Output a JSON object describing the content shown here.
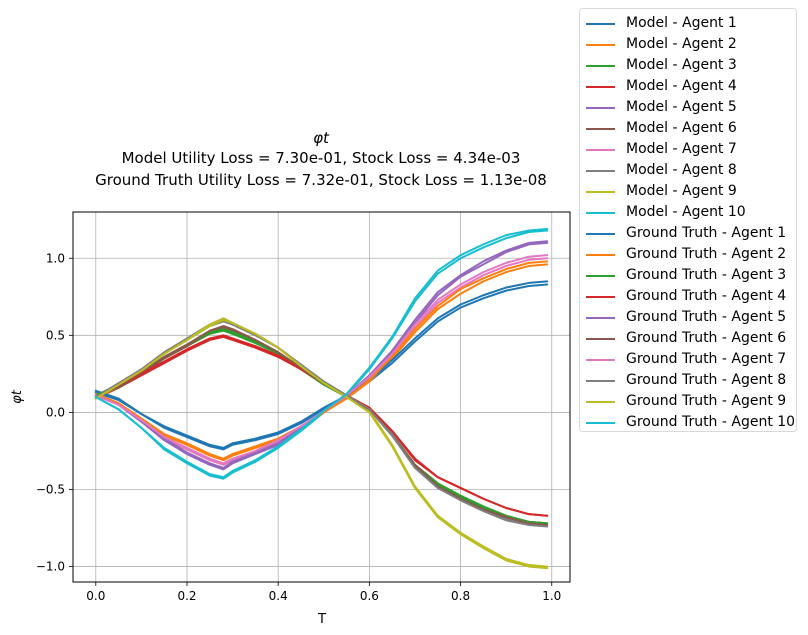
{
  "chart_data": {
    "type": "line",
    "title": "φt",
    "subtitle_lines": [
      "Model Utility Loss = 7.30e-01, Stock Loss = 4.34e-03",
      "Ground Truth Utility Loss = 7.32e-01, Stock Loss = 1.13e-08"
    ],
    "xlabel": "T",
    "ylabel": "φt",
    "xlim": [
      -0.05,
      1.04
    ],
    "ylim": [
      -1.1,
      1.3
    ],
    "xticks": [
      0.0,
      0.2,
      0.4,
      0.6,
      0.8,
      1.0
    ],
    "xtick_labels": [
      "0.0",
      "0.2",
      "0.4",
      "0.6",
      "0.8",
      "1.0"
    ],
    "yticks": [
      -1.0,
      -0.5,
      0.0,
      0.5,
      1.0
    ],
    "ytick_labels": [
      "−1.0",
      "−0.5",
      "0.0",
      "0.5",
      "1.0"
    ],
    "grid": true,
    "legend_position": "outside-right",
    "x": [
      0.0,
      0.05,
      0.1,
      0.15,
      0.2,
      0.25,
      0.28,
      0.3,
      0.35,
      0.4,
      0.45,
      0.5,
      0.55,
      0.6,
      0.65,
      0.7,
      0.75,
      0.8,
      0.85,
      0.9,
      0.95,
      0.99
    ],
    "series": [
      {
        "name": "Model - Agent 1",
        "color": "#1f77b4",
        "values": [
          0.13,
          0.08,
          -0.01,
          -0.1,
          -0.16,
          -0.22,
          -0.24,
          -0.21,
          -0.18,
          -0.14,
          -0.07,
          0.02,
          0.1,
          0.2,
          0.32,
          0.46,
          0.59,
          0.68,
          0.74,
          0.79,
          0.82,
          0.83
        ]
      },
      {
        "name": "Model - Agent 2",
        "color": "#ff7f0e",
        "values": [
          0.12,
          0.06,
          -0.04,
          -0.15,
          -0.21,
          -0.28,
          -0.31,
          -0.28,
          -0.23,
          -0.18,
          -0.1,
          0.0,
          0.09,
          0.2,
          0.35,
          0.52,
          0.67,
          0.77,
          0.85,
          0.91,
          0.95,
          0.96
        ]
      },
      {
        "name": "Model - Agent 3",
        "color": "#2ca02c",
        "values": [
          0.1,
          0.17,
          0.25,
          0.35,
          0.43,
          0.51,
          0.53,
          0.51,
          0.45,
          0.38,
          0.28,
          0.19,
          0.11,
          0.03,
          -0.14,
          -0.34,
          -0.46,
          -0.54,
          -0.61,
          -0.67,
          -0.71,
          -0.72
        ]
      },
      {
        "name": "Model - Agent 4",
        "color": "#d62728",
        "values": [
          0.09,
          0.16,
          0.24,
          0.32,
          0.4,
          0.47,
          0.49,
          0.47,
          0.42,
          0.36,
          0.28,
          0.19,
          0.11,
          0.03,
          -0.12,
          -0.31,
          -0.42,
          -0.49,
          -0.56,
          -0.62,
          -0.66,
          -0.67
        ]
      },
      {
        "name": "Model - Agent 5",
        "color": "#9467bd",
        "values": [
          0.11,
          0.05,
          -0.06,
          -0.18,
          -0.27,
          -0.34,
          -0.37,
          -0.33,
          -0.27,
          -0.21,
          -0.11,
          0.0,
          0.1,
          0.23,
          0.39,
          0.58,
          0.76,
          0.88,
          0.96,
          1.04,
          1.09,
          1.1
        ]
      },
      {
        "name": "Model - Agent 6",
        "color": "#8c564b",
        "values": [
          0.1,
          0.16,
          0.25,
          0.35,
          0.43,
          0.52,
          0.55,
          0.53,
          0.47,
          0.39,
          0.29,
          0.19,
          0.11,
          0.03,
          -0.14,
          -0.34,
          -0.47,
          -0.55,
          -0.62,
          -0.68,
          -0.71,
          -0.72
        ]
      },
      {
        "name": "Model - Agent 7",
        "color": "#e377c2",
        "values": [
          0.11,
          0.05,
          -0.05,
          -0.17,
          -0.24,
          -0.31,
          -0.34,
          -0.31,
          -0.26,
          -0.19,
          -0.1,
          0.0,
          0.1,
          0.22,
          0.37,
          0.55,
          0.71,
          0.81,
          0.89,
          0.95,
          0.99,
          1.0
        ]
      },
      {
        "name": "Model - Agent 8",
        "color": "#7f7f7f",
        "values": [
          0.09,
          0.18,
          0.27,
          0.38,
          0.47,
          0.56,
          0.59,
          0.57,
          0.5,
          0.42,
          0.31,
          0.2,
          0.11,
          0.03,
          -0.14,
          -0.35,
          -0.48,
          -0.56,
          -0.63,
          -0.69,
          -0.72,
          -0.73
        ]
      },
      {
        "name": "Model - Agent 9",
        "color": "#bcbd22",
        "values": [
          0.09,
          0.17,
          0.27,
          0.38,
          0.47,
          0.56,
          0.6,
          0.58,
          0.51,
          0.42,
          0.3,
          0.19,
          0.11,
          0.01,
          -0.21,
          -0.48,
          -0.67,
          -0.78,
          -0.87,
          -0.95,
          -0.99,
          -1.0
        ]
      },
      {
        "name": "Model - Agent 10",
        "color": "#17becf",
        "values": [
          0.1,
          0.02,
          -0.1,
          -0.24,
          -0.33,
          -0.41,
          -0.43,
          -0.39,
          -0.32,
          -0.23,
          -0.12,
          0.0,
          0.11,
          0.28,
          0.48,
          0.72,
          0.9,
          1.0,
          1.07,
          1.13,
          1.17,
          1.18
        ]
      },
      {
        "name": "Ground Truth - Agent 1",
        "color": "#1f77b4",
        "values": [
          0.14,
          0.09,
          -0.01,
          -0.09,
          -0.15,
          -0.21,
          -0.23,
          -0.2,
          -0.17,
          -0.13,
          -0.06,
          0.03,
          0.11,
          0.21,
          0.34,
          0.48,
          0.61,
          0.7,
          0.76,
          0.81,
          0.84,
          0.85
        ]
      },
      {
        "name": "Ground Truth - Agent 2",
        "color": "#ff7f0e",
        "values": [
          0.12,
          0.06,
          -0.04,
          -0.14,
          -0.2,
          -0.27,
          -0.3,
          -0.27,
          -0.22,
          -0.17,
          -0.09,
          0.0,
          0.09,
          0.21,
          0.36,
          0.54,
          0.69,
          0.8,
          0.87,
          0.93,
          0.97,
          0.98
        ]
      },
      {
        "name": "Ground Truth - Agent 3",
        "color": "#2ca02c",
        "values": [
          0.11,
          0.18,
          0.26,
          0.36,
          0.44,
          0.52,
          0.54,
          0.52,
          0.46,
          0.38,
          0.28,
          0.18,
          0.1,
          0.02,
          -0.15,
          -0.35,
          -0.47,
          -0.55,
          -0.62,
          -0.68,
          -0.71,
          -0.72
        ]
      },
      {
        "name": "Ground Truth - Agent 4",
        "color": "#d62728",
        "values": [
          0.1,
          0.17,
          0.25,
          0.33,
          0.41,
          0.48,
          0.5,
          0.48,
          0.43,
          0.37,
          0.28,
          0.19,
          0.11,
          0.03,
          -0.12,
          -0.3,
          -0.42,
          -0.49,
          -0.56,
          -0.62,
          -0.66,
          -0.67
        ]
      },
      {
        "name": "Ground Truth - Agent 5",
        "color": "#9467bd",
        "values": [
          0.11,
          0.05,
          -0.06,
          -0.17,
          -0.26,
          -0.33,
          -0.36,
          -0.32,
          -0.26,
          -0.2,
          -0.1,
          0.01,
          0.11,
          0.24,
          0.4,
          0.6,
          0.78,
          0.89,
          0.98,
          1.05,
          1.1,
          1.11
        ]
      },
      {
        "name": "Ground Truth - Agent 6",
        "color": "#8c564b",
        "values": [
          0.1,
          0.17,
          0.26,
          0.36,
          0.44,
          0.53,
          0.56,
          0.54,
          0.47,
          0.39,
          0.29,
          0.19,
          0.1,
          0.02,
          -0.15,
          -0.35,
          -0.48,
          -0.56,
          -0.63,
          -0.68,
          -0.72,
          -0.73
        ]
      },
      {
        "name": "Ground Truth - Agent 7",
        "color": "#e377c2",
        "values": [
          0.11,
          0.05,
          -0.05,
          -0.16,
          -0.23,
          -0.3,
          -0.33,
          -0.3,
          -0.25,
          -0.18,
          -0.09,
          0.01,
          0.11,
          0.23,
          0.38,
          0.57,
          0.73,
          0.83,
          0.91,
          0.97,
          1.01,
          1.02
        ]
      },
      {
        "name": "Ground Truth - Agent 8",
        "color": "#7f7f7f",
        "values": [
          0.1,
          0.19,
          0.28,
          0.39,
          0.48,
          0.57,
          0.61,
          0.58,
          0.51,
          0.42,
          0.31,
          0.2,
          0.11,
          0.02,
          -0.15,
          -0.36,
          -0.49,
          -0.57,
          -0.64,
          -0.7,
          -0.73,
          -0.74
        ]
      },
      {
        "name": "Ground Truth - Agent 9",
        "color": "#bcbd22",
        "values": [
          0.09,
          0.18,
          0.27,
          0.38,
          0.47,
          0.57,
          0.61,
          0.58,
          0.51,
          0.42,
          0.3,
          0.19,
          0.1,
          0.0,
          -0.22,
          -0.49,
          -0.68,
          -0.79,
          -0.88,
          -0.96,
          -1.0,
          -1.01
        ]
      },
      {
        "name": "Ground Truth - Agent 10",
        "color": "#17becf",
        "values": [
          0.1,
          0.02,
          -0.1,
          -0.23,
          -0.32,
          -0.4,
          -0.42,
          -0.38,
          -0.31,
          -0.22,
          -0.11,
          0.01,
          0.12,
          0.29,
          0.49,
          0.74,
          0.92,
          1.02,
          1.09,
          1.15,
          1.18,
          1.19
        ]
      }
    ]
  }
}
